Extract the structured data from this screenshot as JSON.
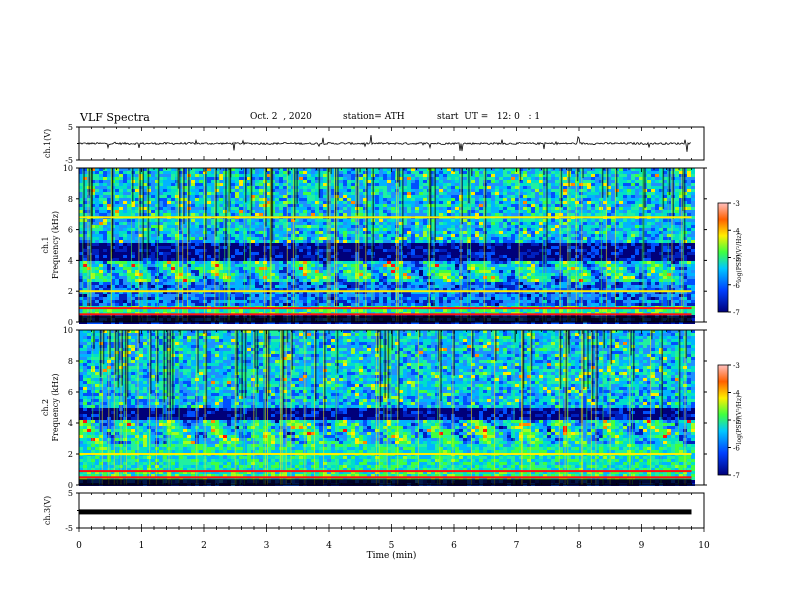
{
  "header": {
    "title": "VLF Spectra",
    "date": "Oct. 2  , 2020",
    "station": "station= ATH",
    "start": "start  UT =   12: 0   : 1"
  },
  "chart_data": [
    {
      "type": "line",
      "panel": "ch1-waveform",
      "ylabel": "ch.1(V)",
      "ylim": [
        -5,
        5
      ],
      "yticks": [
        5,
        -5
      ],
      "description_values": {
        "baseline": 0.0,
        "noise_amplitude": 0.6
      }
    },
    {
      "type": "heatmap",
      "panel": "ch1-spectrogram",
      "ylabel": "ch.1 Frequency (kHz)",
      "ylim": [
        0,
        10
      ],
      "yticks": [
        0,
        2,
        4,
        6,
        8,
        10
      ],
      "colorbar": {
        "label": "log(PSD)(V²/Hz)",
        "ticks": [
          -3,
          -4,
          -5,
          -6,
          -7
        ],
        "range": [
          -7,
          -3
        ]
      },
      "tones_khz": [
        0.5,
        0.9,
        2.0,
        6.8
      ],
      "dark_band_khz": [
        4.0,
        5.2
      ]
    },
    {
      "type": "heatmap",
      "panel": "ch2-spectrogram",
      "ylabel": "ch.2 Frequency (kHz)",
      "ylim": [
        0,
        10
      ],
      "yticks": [
        0,
        2,
        4,
        6,
        8,
        10
      ],
      "colorbar": {
        "label": "log(PSD)(V²/Hz)",
        "ticks": [
          -3,
          -4,
          -5,
          -6,
          -7
        ],
        "range": [
          -7,
          -3
        ]
      },
      "tones_khz": [
        0.5,
        0.9,
        2.0
      ],
      "dark_band_khz": [
        4.2,
        5.0
      ]
    },
    {
      "type": "line",
      "panel": "ch3-waveform",
      "ylabel": "ch.3(V)",
      "ylim": [
        -5,
        5
      ],
      "yticks": [
        5,
        -5
      ],
      "description_values": {
        "level": -0.4
      }
    }
  ],
  "xaxis": {
    "label": "Time  (min)",
    "range": [
      0,
      10
    ],
    "ticks": [
      "0",
      "1",
      "2",
      "3",
      "4",
      "5",
      "6",
      "7",
      "8",
      "9",
      "10"
    ],
    "data_end_min": 9.8
  },
  "colors": {
    "low": "#00007a",
    "mid": "#1e90ff",
    "cyan": "#00e0c8",
    "green": "#40ff40",
    "yellow": "#ffee00",
    "orange": "#ff8800",
    "red": "#ff1010"
  }
}
